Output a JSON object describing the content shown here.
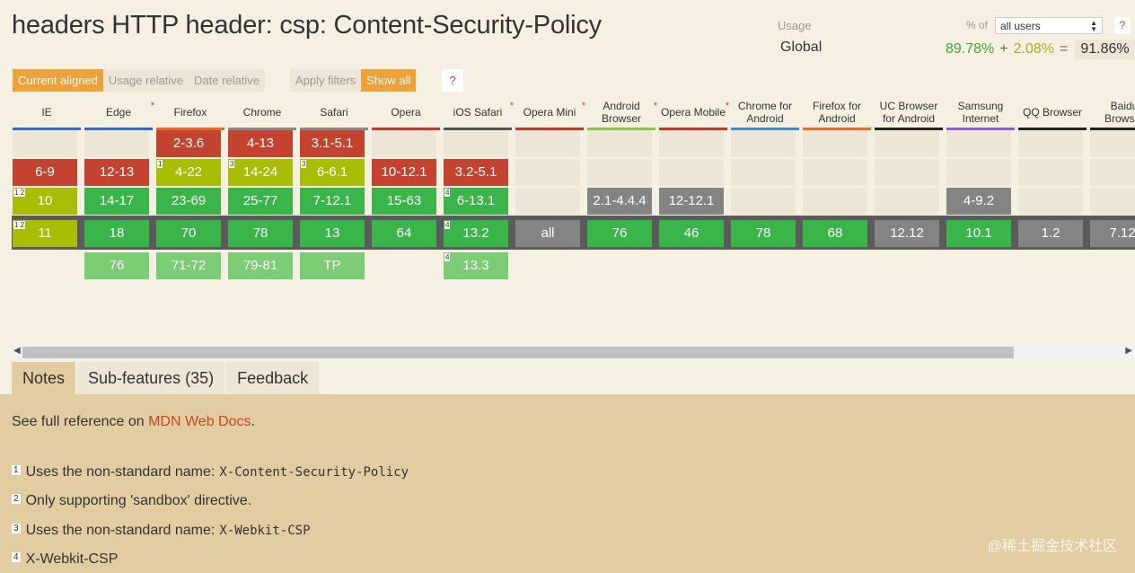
{
  "title": "headers HTTP header: csp: Content-Security-Policy",
  "usage": {
    "label": "Usage",
    "region": "Global",
    "pct_of": "% of",
    "user_select": "all users",
    "help": "?",
    "supported": "89.78%",
    "plus": "+",
    "partial": "2.08%",
    "equals": "=",
    "total": "91.86%"
  },
  "toolbar": {
    "current_aligned": "Current aligned",
    "usage_relative": "Usage relative",
    "date_relative": "Date relative",
    "apply_filters": "Apply filters",
    "show_all": "Show all",
    "help": "?"
  },
  "browsers": [
    {
      "name": "IE",
      "star": false,
      "bar": "#3269c9",
      "cells": [
        {
          "row": 1,
          "text": "6-9",
          "color": "red"
        },
        {
          "row": 2,
          "text": "10",
          "color": "yg",
          "note": "1 2"
        },
        {
          "row": 3,
          "text": "11",
          "color": "yg",
          "note": "1 2"
        }
      ]
    },
    {
      "name": "Edge",
      "star": true,
      "bar": "#3269c9",
      "cells": [
        {
          "row": 1,
          "text": "12-13",
          "color": "red"
        },
        {
          "row": 2,
          "text": "14-17",
          "color": "green"
        },
        {
          "row": 3,
          "text": "18",
          "color": "green"
        },
        {
          "row": 4,
          "text": "76",
          "color": "lgreen"
        }
      ]
    },
    {
      "name": "Firefox",
      "star": false,
      "bar": "#e86c2b",
      "cells": [
        {
          "row": 0,
          "text": "2-3.6",
          "color": "red"
        },
        {
          "row": 1,
          "text": "4-22",
          "color": "yg",
          "note": "1"
        },
        {
          "row": 2,
          "text": "23-69",
          "color": "green"
        },
        {
          "row": 3,
          "text": "70",
          "color": "green"
        },
        {
          "row": 4,
          "text": "71-72",
          "color": "lgreen"
        }
      ]
    },
    {
      "name": "Chrome",
      "star": false,
      "bar": "#888888",
      "cells": [
        {
          "row": 0,
          "text": "4-13",
          "color": "red"
        },
        {
          "row": 1,
          "text": "14-24",
          "color": "yg",
          "note": "3"
        },
        {
          "row": 2,
          "text": "25-77",
          "color": "green"
        },
        {
          "row": 3,
          "text": "78",
          "color": "green"
        },
        {
          "row": 4,
          "text": "79-81",
          "color": "lgreen"
        }
      ]
    },
    {
      "name": "Safari",
      "star": false,
      "bar": "#888888",
      "cells": [
        {
          "row": 0,
          "text": "3.1-5.1",
          "color": "red"
        },
        {
          "row": 1,
          "text": "6-6.1",
          "color": "yg",
          "note": "3"
        },
        {
          "row": 2,
          "text": "7-12.1",
          "color": "green"
        },
        {
          "row": 3,
          "text": "13",
          "color": "green"
        },
        {
          "row": 4,
          "text": "TP",
          "color": "lgreen"
        }
      ]
    },
    {
      "name": "Opera",
      "star": false,
      "bar": "#c0392b",
      "cells": [
        {
          "row": 1,
          "text": "10-12.1",
          "color": "red"
        },
        {
          "row": 2,
          "text": "15-63",
          "color": "green"
        },
        {
          "row": 3,
          "text": "64",
          "color": "green"
        }
      ]
    },
    {
      "name": "iOS Safari",
      "star": true,
      "bar": "#555555",
      "cells": [
        {
          "row": 1,
          "text": "3.2-5.1",
          "color": "red"
        },
        {
          "row": 2,
          "text": "6-13.1",
          "color": "green",
          "note": "4"
        },
        {
          "row": 3,
          "text": "13.2",
          "color": "green",
          "note": "4"
        },
        {
          "row": 4,
          "text": "13.3",
          "color": "lgreen",
          "note": "4"
        }
      ]
    },
    {
      "name": "Opera Mini",
      "star": true,
      "bar": "#c0392b",
      "cells": [
        {
          "row": 3,
          "text": "all",
          "color": "gray"
        }
      ]
    },
    {
      "name": "Android Browser",
      "star": true,
      "bar": "#8bc34a",
      "cells": [
        {
          "row": 2,
          "text": "2.1-4.4.4",
          "color": "gray"
        },
        {
          "row": 3,
          "text": "76",
          "color": "green"
        }
      ]
    },
    {
      "name": "Opera Mobile",
      "star": true,
      "bar": "#c0392b",
      "cells": [
        {
          "row": 2,
          "text": "12-12.1",
          "color": "gray"
        },
        {
          "row": 3,
          "text": "46",
          "color": "green"
        }
      ]
    },
    {
      "name": "Chrome for Android",
      "star": false,
      "bar": "#3a8bd6",
      "cells": [
        {
          "row": 3,
          "text": "78",
          "color": "green"
        }
      ]
    },
    {
      "name": "Firefox for Android",
      "star": false,
      "bar": "#e86c2b",
      "cells": [
        {
          "row": 3,
          "text": "68",
          "color": "green"
        }
      ]
    },
    {
      "name": "UC Browser for Android",
      "star": false,
      "bar": "#222222",
      "cells": [
        {
          "row": 3,
          "text": "12.12",
          "color": "gray"
        }
      ]
    },
    {
      "name": "Samsung Internet",
      "star": false,
      "bar": "#8a5cdb",
      "cells": [
        {
          "row": 2,
          "text": "4-9.2",
          "color": "gray"
        },
        {
          "row": 3,
          "text": "10.1",
          "color": "green"
        }
      ]
    },
    {
      "name": "QQ Browser",
      "star": false,
      "bar": "#222222",
      "cells": [
        {
          "row": 3,
          "text": "1.2",
          "color": "gray"
        }
      ]
    },
    {
      "name": "Baidu Browser",
      "star": false,
      "bar": "#222222",
      "cells": [
        {
          "row": 3,
          "text": "7.12",
          "color": "gray"
        }
      ]
    }
  ],
  "tabs": [
    {
      "label": "Notes",
      "active": true
    },
    {
      "label": "Sub-features (35)",
      "active": false
    },
    {
      "label": "Feedback",
      "active": false
    }
  ],
  "notes": {
    "ref_prefix": "See full reference on ",
    "ref_link": "MDN Web Docs",
    "ref_suffix": ".",
    "items": [
      {
        "num": "1",
        "text": "Uses the non-standard name:",
        "code": "X-Content-Security-Policy"
      },
      {
        "num": "2",
        "text": "Only supporting 'sandbox' directive.",
        "code": ""
      },
      {
        "num": "3",
        "text": "Uses the non-standard name:",
        "code": "X-Webkit-CSP"
      },
      {
        "num": "4",
        "text": "X-Webkit-CSP",
        "code": ""
      }
    ]
  },
  "watermark": "@稀土掘金技术社区"
}
